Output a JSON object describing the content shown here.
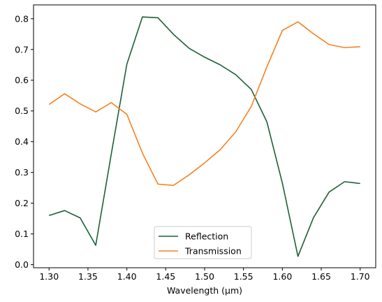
{
  "chart_data": {
    "type": "line",
    "title": "",
    "xlabel": "Wavelength (μm)",
    "ylabel": "",
    "xlim": [
      1.28,
      1.72
    ],
    "ylim": [
      -0.01,
      0.845
    ],
    "xticks": [
      1.3,
      1.35,
      1.4,
      1.45,
      1.5,
      1.55,
      1.6,
      1.65,
      1.7
    ],
    "xtick_labels": [
      "1.30",
      "1.35",
      "1.40",
      "1.45",
      "1.50",
      "1.55",
      "1.60",
      "1.65",
      "1.70"
    ],
    "yticks": [
      0.0,
      0.1,
      0.2,
      0.3,
      0.4,
      0.5,
      0.6,
      0.7,
      0.8
    ],
    "ytick_labels": [
      "0.0",
      "0.1",
      "0.2",
      "0.3",
      "0.4",
      "0.5",
      "0.6",
      "0.7",
      "0.8"
    ],
    "grid": false,
    "legend_position": "bottom-center",
    "x": [
      1.3,
      1.32,
      1.34,
      1.36,
      1.38,
      1.4,
      1.42,
      1.44,
      1.46,
      1.48,
      1.5,
      1.52,
      1.54,
      1.56,
      1.58,
      1.6,
      1.62,
      1.64,
      1.66,
      1.68,
      1.7
    ],
    "series": [
      {
        "name": "Reflection",
        "color": "#1a6136",
        "values": [
          0.16,
          0.176,
          0.152,
          0.063,
          0.36,
          0.652,
          0.806,
          0.803,
          0.749,
          0.704,
          0.675,
          0.65,
          0.618,
          0.57,
          0.465,
          0.265,
          0.027,
          0.153,
          0.236,
          0.27,
          0.264
        ]
      },
      {
        "name": "Transmission",
        "color": "#f58220",
        "values": [
          0.521,
          0.556,
          0.523,
          0.497,
          0.527,
          0.489,
          0.363,
          0.262,
          0.258,
          0.292,
          0.331,
          0.374,
          0.432,
          0.515,
          0.643,
          0.762,
          0.79,
          0.751,
          0.716,
          0.706,
          0.709
        ]
      }
    ]
  }
}
